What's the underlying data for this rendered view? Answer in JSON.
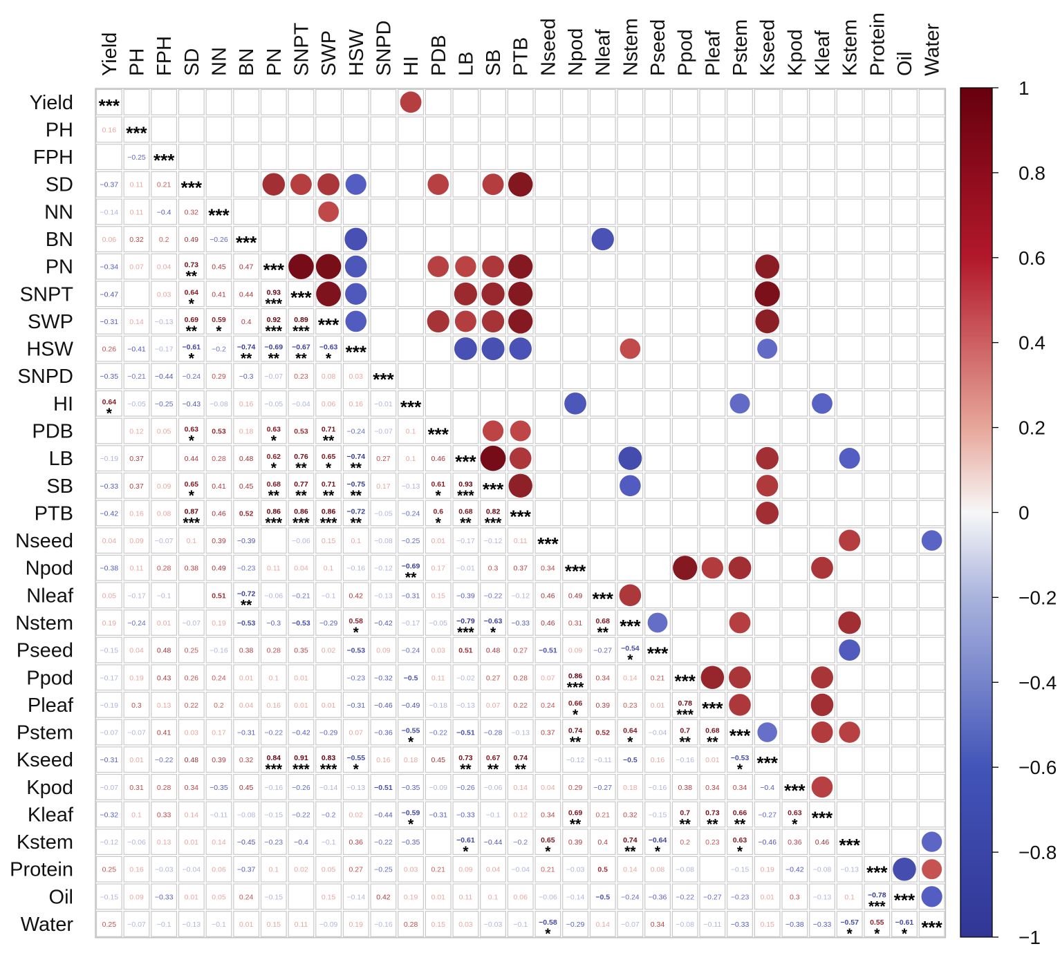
{
  "chart_data": {
    "type": "heatmap",
    "title": "",
    "variables": [
      "Yield",
      "PH",
      "FPH",
      "SD",
      "NN",
      "BN",
      "PN",
      "SNPT",
      "SWP",
      "HSW",
      "SNPD",
      "HI",
      "PDB",
      "LB",
      "SB",
      "PTB",
      "Nseed",
      "Npod",
      "Nleaf",
      "Nstem",
      "Pseed",
      "Ppod",
      "Pleaf",
      "Pstem",
      "Kseed",
      "Kpod",
      "Kleaf",
      "Kstem",
      "Protein",
      "Oil",
      "Water"
    ],
    "diagonal_label": "***",
    "colorbar": {
      "ticks": [
        "1",
        "0.8",
        "0.6",
        "0.4",
        "0.2",
        "0",
        "−0.2",
        "−0.4",
        "−0.6",
        "−0.8",
        "−1"
      ],
      "range": [
        -1,
        1
      ],
      "colors": {
        "neg": "#313695",
        "mid": "#ffffff",
        "pos": "#67000d"
      }
    },
    "lower_triangle": [
      [],
      [
        "0.16"
      ],
      [
        "",
        "−0.25"
      ],
      [
        "−0.37",
        "0.11",
        "0.21"
      ],
      [
        "−0.14",
        "0.11",
        "−0.4",
        "0.32"
      ],
      [
        "0.06",
        "0.32",
        "0.2",
        "0.49",
        "−0.26"
      ],
      [
        "−0.34",
        "0.07",
        "0.04",
        "0.73|**",
        "0.45",
        "0.47"
      ],
      [
        "−0.47",
        "",
        "0.03",
        "0.64|*",
        "0.41",
        "0.44",
        "0.93|***"
      ],
      [
        "−0.31",
        "0.14",
        "−0.13",
        "0.69|**",
        "0.59|*",
        "0.4",
        "0.92|***",
        "0.89|***"
      ],
      [
        "0.26",
        "−0.41",
        "−0.17",
        "−0.61|*",
        "−0.2",
        "−0.74|**",
        "−0.69|**",
        "−0.67|**",
        "−0.63|*"
      ],
      [
        "−0.35",
        "−0.21",
        "−0.44",
        "−0.24",
        "0.29",
        "−0.3",
        "−0.07",
        "0.23",
        "0.08",
        "0.03"
      ],
      [
        "0.64|*",
        "−0.05",
        "−0.25",
        "−0.43",
        "−0.08",
        "0.16",
        "−0.05",
        "−0.04",
        "0.06",
        "0.16",
        "−0.01"
      ],
      [
        "",
        "0.12",
        "0.05",
        "0.63|*",
        "0.53",
        "0.18",
        "0.63|*",
        "0.53",
        "0.71|**",
        "−0.24",
        "−0.07",
        "0.1"
      ],
      [
        "−0.19",
        "0.37",
        "",
        "0.44",
        "0.28",
        "0.48",
        "0.62|*",
        "0.76|**",
        "0.65|*",
        "−0.74|**",
        "0.27",
        "0.1",
        "0.46"
      ],
      [
        "−0.33",
        "0.37",
        "0.09",
        "0.65|*",
        "0.41",
        "0.45",
        "0.68|**",
        "0.77|**",
        "0.71|**",
        "−0.75|**",
        "0.17",
        "−0.13",
        "0.61|*",
        "0.93|***"
      ],
      [
        "−0.42",
        "0.16",
        "0.08",
        "0.87|***",
        "0.46",
        "0.52",
        "0.86|***",
        "0.86|***",
        "0.86|***",
        "−0.72|**",
        "−0.05",
        "−0.24",
        "0.6|*",
        "0.68|**",
        "0.82|***"
      ],
      [
        "0.04",
        "0.09",
        "−0.07",
        "0.1",
        "0.39",
        "−0.39",
        "",
        "−0.06",
        "0.15",
        "0.1",
        "−0.08",
        "−0.25",
        "0.01",
        "−0.17",
        "−0.12",
        "0.11"
      ],
      [
        "−0.38",
        "0.11",
        "0.28",
        "0.38",
        "0.49",
        "−0.23",
        "0.11",
        "0.04",
        "0.1",
        "−0.16",
        "−0.12",
        "−0.69|**",
        "0.17",
        "−0.01",
        "0.3",
        "0.37",
        "0.34"
      ],
      [
        "0.05",
        "−0.17",
        "−0.1",
        "",
        "0.51",
        "−0.72|**",
        "−0.06",
        "−0.21",
        "−0.1",
        "0.42",
        "−0.13",
        "−0.31",
        "0.15",
        "−0.39",
        "−0.22",
        "−0.12",
        "0.46",
        "0.49"
      ],
      [
        "0.19",
        "−0.24",
        "0.01",
        "−0.07",
        "0.19",
        "−0.53",
        "−0.3",
        "−0.53",
        "−0.29",
        "0.58|*",
        "−0.42",
        "−0.17",
        "−0.05",
        "−0.79|***",
        "−0.63|*",
        "−0.33",
        "0.46",
        "0.31",
        "0.68|**"
      ],
      [
        "−0.15",
        "0.04",
        "0.48",
        "0.25",
        "−0.16",
        "0.38",
        "0.28",
        "0.35",
        "0.02",
        "−0.53",
        "0.09",
        "−0.24",
        "0.03",
        "0.51",
        "0.48",
        "0.27",
        "−0.51",
        "0.09",
        "−0.27",
        "−0.54|*"
      ],
      [
        "−0.17",
        "0.19",
        "0.43",
        "0.26",
        "0.24",
        "0.01",
        "0.1",
        "0.01",
        "",
        "−0.23",
        "−0.32",
        "−0.5",
        "0.11",
        "−0.02",
        "0.27",
        "0.28",
        "0.07",
        "0.86|***",
        "0.34",
        "0.14",
        "0.21"
      ],
      [
        "−0.19",
        "0.3",
        "0.13",
        "0.22",
        "0.2",
        "0.04",
        "0.16",
        "0.01",
        "0.01",
        "−0.31",
        "−0.46",
        "−0.49",
        "−0.18",
        "−0.13",
        "0.07",
        "0.22",
        "0.24",
        "0.66|*",
        "0.39",
        "0.23",
        "0.01",
        "0.78|***"
      ],
      [
        "−0.07",
        "−0.07",
        "0.41",
        "0.03",
        "0.17",
        "−0.31",
        "−0.22",
        "−0.42",
        "−0.29",
        "0.07",
        "−0.36",
        "−0.55|*",
        "−0.22",
        "−0.51",
        "−0.28",
        "−0.13",
        "0.37",
        "0.74|**",
        "0.52",
        "0.64|*",
        "−0.04",
        "0.7|**",
        "0.68|**"
      ],
      [
        "−0.31",
        "0.01",
        "−0.22",
        "0.48",
        "0.39",
        "0.32",
        "0.84|***",
        "0.91|***",
        "0.83|***",
        "−0.55|*",
        "0.16",
        "0.18",
        "0.45",
        "0.73|**",
        "0.67|**",
        "0.74|**",
        "",
        "−0.12",
        "−0.11",
        "−0.5",
        "0.16",
        "−0.16",
        "0.01",
        "−0.53|*"
      ],
      [
        "−0.07",
        "0.31",
        "0.28",
        "0.34",
        "−0.35",
        "0.45",
        "−0.16",
        "−0.26",
        "−0.14",
        "−0.13",
        "−0.51",
        "−0.35",
        "−0.09",
        "−0.26",
        "−0.06",
        "0.14",
        "0.04",
        "0.29",
        "−0.27",
        "0.18",
        "−0.16",
        "0.38",
        "0.34",
        "0.34",
        "−0.4"
      ],
      [
        "−0.32",
        "0.1",
        "0.33",
        "0.14",
        "−0.11",
        "−0.08",
        "−0.15",
        "−0.22",
        "−0.2",
        "0.02",
        "−0.44",
        "−0.59|*",
        "−0.31",
        "−0.33",
        "−0.1",
        "0.12",
        "0.34",
        "0.69|**",
        "0.21",
        "0.32",
        "−0.15",
        "0.7|**",
        "0.73|**",
        "0.66|**",
        "−0.27",
        "0.63|*"
      ],
      [
        "−0.12",
        "−0.06",
        "0.13",
        "0.01",
        "0.14",
        "−0.45",
        "−0.23",
        "−0.4",
        "−0.1",
        "0.36",
        "−0.22",
        "−0.35",
        "",
        "−0.61|*",
        "−0.44",
        "−0.2",
        "0.65|*",
        "0.39",
        "0.4",
        "0.74|**",
        "−0.64|*",
        "0.2",
        "0.23",
        "0.63|*",
        "−0.46",
        "0.36",
        "0.46"
      ],
      [
        "0.25",
        "0.16",
        "−0.03",
        "−0.04",
        "0.06",
        "−0.37",
        "0.1",
        "0.02",
        "0.05",
        "0.27",
        "−0.25",
        "0.03",
        "0.21",
        "0.09",
        "0.04",
        "−0.04",
        "0.21",
        "−0.03",
        "0.5",
        "0.14",
        "0.08",
        "−0.08",
        "",
        "−0.15",
        "0.19",
        "−0.42",
        "−0.08",
        "−0.13"
      ],
      [
        "−0.15",
        "0.09",
        "−0.33",
        "0.01",
        "0.05",
        "0.24",
        "−0.15",
        "",
        "0.15",
        "−0.14",
        "0.42",
        "0.19",
        "0.01",
        "0.11",
        "0.1",
        "0.06",
        "−0.06",
        "−0.14",
        "−0.5",
        "−0.24",
        "−0.36",
        "−0.22",
        "−0.27",
        "−0.23",
        "0.01",
        "0.3",
        "−0.13",
        "0.1",
        "−0.78|***"
      ],
      [
        "0.25",
        "−0.07",
        "−0.1",
        "−0.13",
        "−0.1",
        "0.01",
        "0.15",
        "0.11",
        "−0.09",
        "0.19",
        "−0.16",
        "0.28",
        "0.15",
        "0.03",
        "−0.03",
        "−0.1",
        "−0.58|*",
        "−0.29",
        "0.14",
        "−0.07",
        "0.34",
        "−0.08",
        "−0.11",
        "−0.33",
        "0.15",
        "−0.38",
        "−0.33",
        "−0.57|*",
        "0.55|*",
        "−0.61|*"
      ]
    ],
    "upper_circles": [
      {
        "row": "Yield",
        "col": "HI",
        "r": 0.64
      },
      {
        "row": "SD",
        "col": "PN",
        "r": 0.73
      },
      {
        "row": "SD",
        "col": "SNPT",
        "r": 0.64
      },
      {
        "row": "SD",
        "col": "SWP",
        "r": 0.69
      },
      {
        "row": "SD",
        "col": "HSW",
        "r": -0.61
      },
      {
        "row": "SD",
        "col": "PDB",
        "r": 0.63
      },
      {
        "row": "SD",
        "col": "SB",
        "r": 0.65
      },
      {
        "row": "SD",
        "col": "PTB",
        "r": 0.87
      },
      {
        "row": "NN",
        "col": "SWP",
        "r": 0.59
      },
      {
        "row": "BN",
        "col": "HSW",
        "r": -0.74
      },
      {
        "row": "BN",
        "col": "Nleaf",
        "r": -0.72
      },
      {
        "row": "PN",
        "col": "SNPT",
        "r": 0.93
      },
      {
        "row": "PN",
        "col": "SWP",
        "r": 0.92
      },
      {
        "row": "PN",
        "col": "HSW",
        "r": -0.69
      },
      {
        "row": "PN",
        "col": "PDB",
        "r": 0.63
      },
      {
        "row": "PN",
        "col": "LB",
        "r": 0.62
      },
      {
        "row": "PN",
        "col": "SB",
        "r": 0.68
      },
      {
        "row": "PN",
        "col": "PTB",
        "r": 0.86
      },
      {
        "row": "PN",
        "col": "Kseed",
        "r": 0.84
      },
      {
        "row": "SNPT",
        "col": "SWP",
        "r": 0.89
      },
      {
        "row": "SNPT",
        "col": "HSW",
        "r": -0.67
      },
      {
        "row": "SNPT",
        "col": "LB",
        "r": 0.76
      },
      {
        "row": "SNPT",
        "col": "SB",
        "r": 0.77
      },
      {
        "row": "SNPT",
        "col": "PTB",
        "r": 0.86
      },
      {
        "row": "SNPT",
        "col": "Kseed",
        "r": 0.91
      },
      {
        "row": "SWP",
        "col": "HSW",
        "r": -0.63
      },
      {
        "row": "SWP",
        "col": "PDB",
        "r": 0.71
      },
      {
        "row": "SWP",
        "col": "LB",
        "r": 0.65
      },
      {
        "row": "SWP",
        "col": "SB",
        "r": 0.71
      },
      {
        "row": "SWP",
        "col": "PTB",
        "r": 0.86
      },
      {
        "row": "SWP",
        "col": "Kseed",
        "r": 0.83
      },
      {
        "row": "HSW",
        "col": "LB",
        "r": -0.74
      },
      {
        "row": "HSW",
        "col": "SB",
        "r": -0.75
      },
      {
        "row": "HSW",
        "col": "PTB",
        "r": -0.72
      },
      {
        "row": "HSW",
        "col": "Nstem",
        "r": 0.58
      },
      {
        "row": "HSW",
        "col": "Kseed",
        "r": -0.55
      },
      {
        "row": "HI",
        "col": "Npod",
        "r": -0.69
      },
      {
        "row": "HI",
        "col": "Pstem",
        "r": -0.55
      },
      {
        "row": "HI",
        "col": "Kleaf",
        "r": -0.59
      },
      {
        "row": "PDB",
        "col": "SB",
        "r": 0.61
      },
      {
        "row": "PDB",
        "col": "PTB",
        "r": 0.6
      },
      {
        "row": "LB",
        "col": "SB",
        "r": 0.93
      },
      {
        "row": "LB",
        "col": "PTB",
        "r": 0.68
      },
      {
        "row": "LB",
        "col": "Nstem",
        "r": -0.79
      },
      {
        "row": "LB",
        "col": "Kseed",
        "r": 0.73
      },
      {
        "row": "LB",
        "col": "Kstem",
        "r": -0.61
      },
      {
        "row": "SB",
        "col": "PTB",
        "r": 0.82
      },
      {
        "row": "SB",
        "col": "Nstem",
        "r": -0.63
      },
      {
        "row": "SB",
        "col": "Kseed",
        "r": 0.67
      },
      {
        "row": "PTB",
        "col": "Kseed",
        "r": 0.74
      },
      {
        "row": "Nseed",
        "col": "Kstem",
        "r": 0.65
      },
      {
        "row": "Nseed",
        "col": "Water",
        "r": -0.58
      },
      {
        "row": "Npod",
        "col": "Ppod",
        "r": 0.86
      },
      {
        "row": "Npod",
        "col": "Pleaf",
        "r": 0.66
      },
      {
        "row": "Npod",
        "col": "Pstem",
        "r": 0.74
      },
      {
        "row": "Npod",
        "col": "Kleaf",
        "r": 0.69
      },
      {
        "row": "Nleaf",
        "col": "Nstem",
        "r": 0.68
      },
      {
        "row": "Nstem",
        "col": "Pseed",
        "r": -0.54
      },
      {
        "row": "Nstem",
        "col": "Pstem",
        "r": 0.64
      },
      {
        "row": "Nstem",
        "col": "Kstem",
        "r": 0.74
      },
      {
        "row": "Pseed",
        "col": "Kstem",
        "r": -0.64
      },
      {
        "row": "Ppod",
        "col": "Pleaf",
        "r": 0.78
      },
      {
        "row": "Ppod",
        "col": "Pstem",
        "r": 0.7
      },
      {
        "row": "Ppod",
        "col": "Kleaf",
        "r": 0.7
      },
      {
        "row": "Pleaf",
        "col": "Pstem",
        "r": 0.68
      },
      {
        "row": "Pleaf",
        "col": "Kleaf",
        "r": 0.73
      },
      {
        "row": "Pstem",
        "col": "Kseed",
        "r": -0.53
      },
      {
        "row": "Pstem",
        "col": "Kleaf",
        "r": 0.66
      },
      {
        "row": "Pstem",
        "col": "Kstem",
        "r": 0.63
      },
      {
        "row": "Kpod",
        "col": "Kleaf",
        "r": 0.63
      },
      {
        "row": "Kstem",
        "col": "Water",
        "r": -0.57
      },
      {
        "row": "Protein",
        "col": "Oil",
        "r": -0.78
      },
      {
        "row": "Protein",
        "col": "Water",
        "r": 0.55
      },
      {
        "row": "Oil",
        "col": "Water",
        "r": -0.61
      }
    ]
  }
}
